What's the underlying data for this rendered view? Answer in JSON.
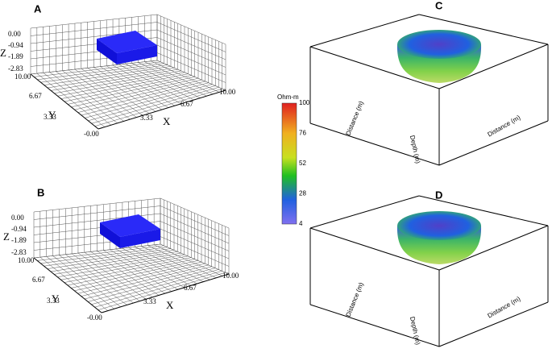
{
  "panels": [
    {
      "label": "A",
      "z_axis": "Z",
      "y_axis": "Y",
      "x_axis": "X",
      "z_ticks": [
        "0.00",
        "-0.94",
        "-1.89",
        "-2.83"
      ],
      "y_ticks": [
        "10.00",
        "6.67",
        "3.33",
        "-0.00"
      ],
      "x_ticks": [
        "3.33",
        "6.67",
        "10.00"
      ]
    },
    {
      "label": "B",
      "z_axis": "Z",
      "y_axis": "Y",
      "x_axis": "X",
      "z_ticks": [
        "0.00",
        "-0.94",
        "-1.89",
        "-2.83"
      ],
      "y_ticks": [
        "10.00",
        "6.67",
        "3.33",
        "-0.00"
      ],
      "x_ticks": [
        "3.33",
        "6.67",
        "10.00"
      ]
    },
    {
      "label": "C",
      "x_axis": "Distance (m)",
      "y_axis": "Distance (m)",
      "z_axis": "Depth (m)"
    },
    {
      "label": "D",
      "x_axis": "Distance (m)",
      "y_axis": "Distance (m)",
      "z_axis": "Depth (m)"
    }
  ],
  "colorbar": {
    "title": "Ohm-m",
    "ticks": [
      "100",
      "76",
      "52",
      "28",
      "4"
    ]
  }
}
